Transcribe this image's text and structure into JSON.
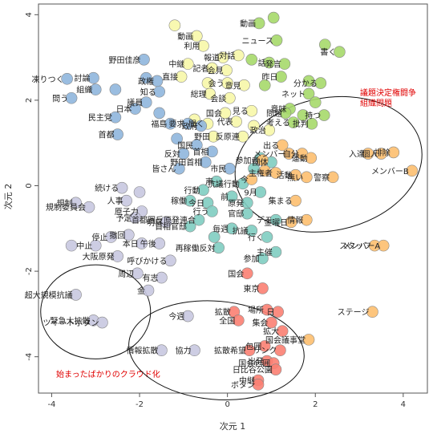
{
  "chart_data": {
    "type": "scatter",
    "xlabel": "次元 1",
    "ylabel": "次元 2",
    "xlim": [
      -4.3,
      4.55
    ],
    "ylim": [
      -4.85,
      4.25
    ],
    "xticks": [
      "-4",
      "-2",
      "0",
      "2",
      "4"
    ],
    "yticks": [
      "-4",
      "-2",
      "0",
      "2",
      "4"
    ],
    "grid": false,
    "colors": {
      "green": "#a6d96a",
      "yellow": "#f7f7a8",
      "blue": "#8fb6dd",
      "teal": "#80cdc1",
      "orange": "#fdbf6f",
      "red": "#fb8072",
      "lavender": "#c8c8e0"
    },
    "points": [
      {
        "x": 1.05,
        "y": 3.93,
        "color": "green",
        "label": ""
      },
      {
        "x": 0.72,
        "y": 3.8,
        "color": "green",
        "label": "動画"
      },
      {
        "x": 1.12,
        "y": 3.4,
        "color": "green",
        "label": "ニュース"
      },
      {
        "x": 2.22,
        "y": 3.3,
        "color": "green",
        "label": ""
      },
      {
        "x": 2.55,
        "y": 3.13,
        "color": "green",
        "label": "書く"
      },
      {
        "x": 0.55,
        "y": 2.95,
        "color": "green",
        "label": ""
      },
      {
        "x": 0.95,
        "y": 2.88,
        "color": "green",
        "label": "話"
      },
      {
        "x": 1.3,
        "y": 2.85,
        "color": "green",
        "label": "発言"
      },
      {
        "x": 1.22,
        "y": 2.55,
        "color": "green",
        "label": "昨日"
      },
      {
        "x": 1.85,
        "y": 2.45,
        "color": "green",
        "label": ""
      },
      {
        "x": 2.12,
        "y": 2.4,
        "color": "green",
        "label": "分かる"
      },
      {
        "x": 0.85,
        "y": 2.35,
        "color": "green",
        "label": ""
      },
      {
        "x": 1.85,
        "y": 2.15,
        "color": "green",
        "label": "ネット"
      },
      {
        "x": 2.0,
        "y": 1.95,
        "color": "green",
        "label": ""
      },
      {
        "x": 1.42,
        "y": 1.8,
        "color": "green",
        "label": "意味"
      },
      {
        "x": 2.2,
        "y": 1.65,
        "color": "green",
        "label": "持つ"
      },
      {
        "x": 1.32,
        "y": 1.7,
        "color": "green",
        "label": "問題"
      },
      {
        "x": 1.72,
        "y": 1.65,
        "color": "green",
        "label": ""
      },
      {
        "x": 1.5,
        "y": 1.48,
        "color": "green",
        "label": "考える"
      },
      {
        "x": 1.92,
        "y": 1.45,
        "color": "green",
        "label": "批判"
      },
      {
        "x": -1.2,
        "y": 3.75,
        "color": "yellow",
        "label": ""
      },
      {
        "x": -0.7,
        "y": 3.5,
        "color": "yellow",
        "label": "動画"
      },
      {
        "x": -0.55,
        "y": 3.27,
        "color": "yellow",
        "label": "利用"
      },
      {
        "x": -0.1,
        "y": 3.0,
        "color": "yellow",
        "label": "報道"
      },
      {
        "x": 0.25,
        "y": 3.05,
        "color": "yellow",
        "label": "対話"
      },
      {
        "x": -0.9,
        "y": 2.85,
        "color": "yellow",
        "label": "中継"
      },
      {
        "x": -0.35,
        "y": 2.75,
        "color": "yellow",
        "label": "記者"
      },
      {
        "x": -0.02,
        "y": 2.7,
        "color": "yellow",
        "label": "会見"
      },
      {
        "x": -1.05,
        "y": 2.55,
        "color": "yellow",
        "label": "直接"
      },
      {
        "x": -0.45,
        "y": 2.4,
        "color": "yellow",
        "label": ""
      },
      {
        "x": 0.0,
        "y": 2.4,
        "color": "yellow",
        "label": "会う"
      },
      {
        "x": 0.38,
        "y": 2.35,
        "color": "yellow",
        "label": "意見"
      },
      {
        "x": -0.4,
        "y": 2.15,
        "color": "yellow",
        "label": "総理"
      },
      {
        "x": 0.05,
        "y": 2.05,
        "color": "yellow",
        "label": "会談"
      },
      {
        "x": -0.05,
        "y": 1.7,
        "color": "yellow",
        "label": "国会"
      },
      {
        "x": 0.55,
        "y": 1.75,
        "color": "yellow",
        "label": "見る"
      },
      {
        "x": -0.75,
        "y": 1.55,
        "color": "yellow",
        "label": ""
      },
      {
        "x": -0.45,
        "y": 1.45,
        "color": "yellow",
        "label": "聞く"
      },
      {
        "x": 0.2,
        "y": 1.5,
        "color": "yellow",
        "label": "代表"
      },
      {
        "x": 0.6,
        "y": 1.4,
        "color": "yellow",
        "label": ""
      },
      {
        "x": 0.95,
        "y": 1.3,
        "color": "yellow",
        "label": "政治"
      },
      {
        "x": -0.32,
        "y": 1.15,
        "color": "yellow",
        "label": "野田"
      },
      {
        "x": 0.35,
        "y": 1.15,
        "color": "yellow",
        "label": "反原連"
      },
      {
        "x": -3.65,
        "y": 2.5,
        "color": "blue",
        "label": "凍りつく"
      },
      {
        "x": -3.05,
        "y": 2.52,
        "color": "blue",
        "label": "討論"
      },
      {
        "x": -1.9,
        "y": 2.95,
        "color": "blue",
        "label": "野田佳彦"
      },
      {
        "x": -1.85,
        "y": 2.52,
        "color": "blue",
        "label": ""
      },
      {
        "x": -1.6,
        "y": 2.45,
        "color": "blue",
        "label": "政権"
      },
      {
        "x": -3.0,
        "y": 2.25,
        "color": "blue",
        "label": "組織"
      },
      {
        "x": -2.55,
        "y": 2.25,
        "color": "blue",
        "label": ""
      },
      {
        "x": -1.55,
        "y": 2.2,
        "color": "blue",
        "label": "知る"
      },
      {
        "x": -3.55,
        "y": 2.05,
        "color": "blue",
        "label": "問う"
      },
      {
        "x": -1.85,
        "y": 1.95,
        "color": "blue",
        "label": "議員"
      },
      {
        "x": -2.1,
        "y": 1.8,
        "color": "blue",
        "label": "日本"
      },
      {
        "x": -1.55,
        "y": 1.7,
        "color": "blue",
        "label": ""
      },
      {
        "x": -2.55,
        "y": 1.6,
        "color": "blue",
        "label": "民主党"
      },
      {
        "x": -1.3,
        "y": 1.45,
        "color": "blue",
        "label": "福島"
      },
      {
        "x": -0.9,
        "y": 1.45,
        "color": "blue",
        "label": "要求"
      },
      {
        "x": -0.6,
        "y": 1.4,
        "color": "blue",
        "label": "政府"
      },
      {
        "x": -2.5,
        "y": 1.2,
        "color": "blue",
        "label": "首都"
      },
      {
        "x": -1.15,
        "y": 1.1,
        "color": "blue",
        "label": ""
      },
      {
        "x": -0.7,
        "y": 0.95,
        "color": "blue",
        "label": "国民"
      },
      {
        "x": -1.0,
        "y": 0.75,
        "color": "blue",
        "label": "反対"
      },
      {
        "x": -0.35,
        "y": 0.8,
        "color": "blue",
        "label": "首相"
      },
      {
        "x": -0.5,
        "y": 0.55,
        "color": "blue",
        "label": "野田首相"
      },
      {
        "x": -1.1,
        "y": 0.4,
        "color": "blue",
        "label": "皆さん"
      },
      {
        "x": 0.05,
        "y": 0.4,
        "color": "blue",
        "label": "市民"
      },
      {
        "x": 0.75,
        "y": 0.65,
        "color": "teal",
        "label": ""
      },
      {
        "x": 1.0,
        "y": 0.55,
        "color": "teal",
        "label": "団体"
      },
      {
        "x": 0.6,
        "y": 0.4,
        "color": "teal",
        "label": ""
      },
      {
        "x": -0.25,
        "y": 0.1,
        "color": "teal",
        "label": "声"
      },
      {
        "x": 0.35,
        "y": 0.05,
        "color": "teal",
        "label": "抗議行動"
      },
      {
        "x": -0.55,
        "y": -0.1,
        "color": "teal",
        "label": "行動"
      },
      {
        "x": 0.1,
        "y": -0.25,
        "color": "teal",
        "label": "前"
      },
      {
        "x": 0.75,
        "y": -0.15,
        "color": "teal",
        "label": "9月"
      },
      {
        "x": -0.85,
        "y": -0.35,
        "color": "teal",
        "label": "稼働"
      },
      {
        "x": -0.45,
        "y": -0.4,
        "color": "teal",
        "label": "今日"
      },
      {
        "x": 0.45,
        "y": -0.4,
        "color": "teal",
        "label": "原発"
      },
      {
        "x": -0.35,
        "y": -0.6,
        "color": "teal",
        "label": "行う"
      },
      {
        "x": 0.45,
        "y": -0.65,
        "color": "teal",
        "label": "官邸"
      },
      {
        "x": 1.1,
        "y": -0.8,
        "color": "teal",
        "label": "デモ"
      },
      {
        "x": -0.65,
        "y": -0.8,
        "color": "teal",
        "label": "首都圏反原発連合"
      },
      {
        "x": -0.85,
        "y": -0.95,
        "color": "teal",
        "label": "首相官邸"
      },
      {
        "x": 0.1,
        "y": -1.0,
        "color": "teal",
        "label": "毎週"
      },
      {
        "x": 0.55,
        "y": -1.05,
        "color": "teal",
        "label": "抗議"
      },
      {
        "x": -0.3,
        "y": -1.2,
        "color": "teal",
        "label": ""
      },
      {
        "x": 0.9,
        "y": -1.2,
        "color": "teal",
        "label": "行く"
      },
      {
        "x": -0.2,
        "y": -1.45,
        "color": "teal",
        "label": "再稼働反対"
      },
      {
        "x": 0.8,
        "y": -1.7,
        "color": "teal",
        "label": "参加"
      },
      {
        "x": 1.1,
        "y": -1.55,
        "color": "teal",
        "label": "主催"
      },
      {
        "x": 0.85,
        "y": 0.35,
        "color": "orange",
        "label": ""
      },
      {
        "x": 1.25,
        "y": 0.95,
        "color": "orange",
        "label": "出る"
      },
      {
        "x": 1.4,
        "y": 0.75,
        "color": "orange",
        "label": "メンバー"
      },
      {
        "x": 1.7,
        "y": 0.75,
        "color": "orange",
        "label": "自分"
      },
      {
        "x": 0.8,
        "y": 0.6,
        "color": "orange",
        "label": "参加者"
      },
      {
        "x": 1.9,
        "y": 0.65,
        "color": "orange",
        "label": "運動"
      },
      {
        "x": 3.5,
        "y": 0.75,
        "color": "orange",
        "label": "個人"
      },
      {
        "x": 3.78,
        "y": 0.78,
        "color": "orange",
        "label": "排除"
      },
      {
        "x": 3.2,
        "y": 0.75,
        "color": "orange",
        "label": "入達"
      },
      {
        "x": 1.1,
        "y": 0.3,
        "color": "orange",
        "label": "主権者"
      },
      {
        "x": 1.55,
        "y": 0.25,
        "color": "orange",
        "label": "活動"
      },
      {
        "x": 1.8,
        "y": 0.2,
        "color": "orange",
        "label": "無い"
      },
      {
        "x": 0.55,
        "y": 0.15,
        "color": "orange",
        "label": "今"
      },
      {
        "x": 2.4,
        "y": 0.2,
        "color": "orange",
        "label": "警察"
      },
      {
        "x": 4.2,
        "y": 0.35,
        "color": "orange",
        "label": "メンバーB"
      },
      {
        "x": 1.55,
        "y": -0.35,
        "color": "orange",
        "label": "集まる"
      },
      {
        "x": 1.8,
        "y": -0.8,
        "color": "orange",
        "label": "情報"
      },
      {
        "x": 1.45,
        "y": -0.85,
        "color": "orange",
        "label": "金曜日"
      },
      {
        "x": 3.35,
        "y": -1.4,
        "color": "orange",
        "label": "スタッフ"
      },
      {
        "x": 3.55,
        "y": -1.4,
        "color": "orange",
        "label": "メンバーA"
      },
      {
        "x": 3.3,
        "y": -2.95,
        "color": "orange",
        "label": "ステージ"
      },
      {
        "x": 1.85,
        "y": -3.6,
        "color": "orange",
        "label": "国会議事堂"
      },
      {
        "x": 0.45,
        "y": -2.05,
        "color": "red",
        "label": "国会"
      },
      {
        "x": 0.8,
        "y": -2.4,
        "color": "red",
        "label": "東京"
      },
      {
        "x": 0.9,
        "y": -2.9,
        "color": "red",
        "label": "場所"
      },
      {
        "x": 1.15,
        "y": -2.95,
        "color": "red",
        "label": "日"
      },
      {
        "x": 0.15,
        "y": -2.95,
        "color": "red",
        "label": "拡散"
      },
      {
        "x": 0.25,
        "y": -3.15,
        "color": "red",
        "label": "全国"
      },
      {
        "x": 1.0,
        "y": -3.2,
        "color": "red",
        "label": "集会"
      },
      {
        "x": 1.25,
        "y": -3.4,
        "color": "red",
        "label": "拡大"
      },
      {
        "x": 0.85,
        "y": -3.75,
        "color": "red",
        "label": "包囲"
      },
      {
        "x": 1.2,
        "y": -3.85,
        "color": "red",
        "label": "リンク"
      },
      {
        "x": 0.5,
        "y": -3.85,
        "color": "red",
        "label": "拡散希望"
      },
      {
        "x": 0.9,
        "y": -4.1,
        "color": "red",
        "label": "出発"
      },
      {
        "x": 1.05,
        "y": -4.15,
        "color": "red",
        "label": "国会包囲"
      },
      {
        "x": 1.1,
        "y": -4.3,
        "color": "red",
        "label": "日比谷公園"
      },
      {
        "x": 0.7,
        "y": -4.55,
        "color": "red",
        "label": "中継"
      },
      {
        "x": 0.7,
        "y": -4.65,
        "color": "red",
        "label": "ボタン"
      },
      {
        "x": -2.4,
        "y": -0.05,
        "color": "lavender",
        "label": "続ける"
      },
      {
        "x": -2.0,
        "y": -0.15,
        "color": "lavender",
        "label": ""
      },
      {
        "x": -3.45,
        "y": -0.4,
        "color": "lavender",
        "label": "規制"
      },
      {
        "x": -2.3,
        "y": -0.35,
        "color": "lavender",
        "label": "人事"
      },
      {
        "x": -3.15,
        "y": -0.5,
        "color": "lavender",
        "label": "規制委員会"
      },
      {
        "x": -1.95,
        "y": -0.6,
        "color": "lavender",
        "label": "原子力"
      },
      {
        "x": -2.1,
        "y": -0.75,
        "color": "lavender",
        "label": "予定"
      },
      {
        "x": -1.4,
        "y": -0.85,
        "color": "lavender",
        "label": "明日"
      },
      {
        "x": -2.25,
        "y": -1.15,
        "color": "lavender",
        "label": "撤回"
      },
      {
        "x": -2.65,
        "y": -1.2,
        "color": "lavender",
        "label": "停止"
      },
      {
        "x": -1.95,
        "y": -1.35,
        "color": "lavender",
        "label": "本日"
      },
      {
        "x": -1.55,
        "y": -1.35,
        "color": "lavender",
        "label": "午後"
      },
      {
        "x": -3.0,
        "y": -1.4,
        "color": "lavender",
        "label": "中止"
      },
      {
        "x": -3.55,
        "y": -1.4,
        "color": "lavender",
        "label": ""
      },
      {
        "x": -1.3,
        "y": -1.75,
        "color": "lavender",
        "label": "呼びかける"
      },
      {
        "x": -2.05,
        "y": -2.05,
        "color": "lavender",
        "label": "周辺"
      },
      {
        "x": -1.5,
        "y": -2.15,
        "color": "lavender",
        "label": "有志"
      },
      {
        "x": -1.8,
        "y": -2.45,
        "color": "lavender",
        "label": "金"
      },
      {
        "x": -2.5,
        "y": -1.65,
        "color": "lavender",
        "label": "大阪原発"
      },
      {
        "x": -3.45,
        "y": -2.55,
        "color": "lavender",
        "label": "超大規模抗議"
      },
      {
        "x": -3.05,
        "y": -3.15,
        "color": "lavender",
        "label": "緊急大拡散"
      },
      {
        "x": -2.85,
        "y": -3.2,
        "color": "lavender",
        "label": "ツイートボタン"
      },
      {
        "x": -0.9,
        "y": -3.05,
        "color": "lavender",
        "label": "今週"
      },
      {
        "x": -0.75,
        "y": -3.85,
        "color": "lavender",
        "label": "協力"
      },
      {
        "x": -1.5,
        "y": -3.85,
        "color": "lavender",
        "label": "情報拡散"
      }
    ],
    "ellipses": [
      {
        "label": "議題決定権闘争\n組織問題",
        "cx": 2.3,
        "cy": 0.5,
        "rx": 2.15,
        "ry": 1.55,
        "angle": 12
      },
      {
        "label": "始まったばかりのクラウド化",
        "cx": -3.0,
        "cy": -2.95,
        "rx": 1.25,
        "ry": 1.1,
        "angle": 0
      },
      {
        "label": "",
        "cx": -0.25,
        "cy": -3.85,
        "rx": 2.0,
        "ry": 1.15,
        "angle": -5
      }
    ]
  }
}
